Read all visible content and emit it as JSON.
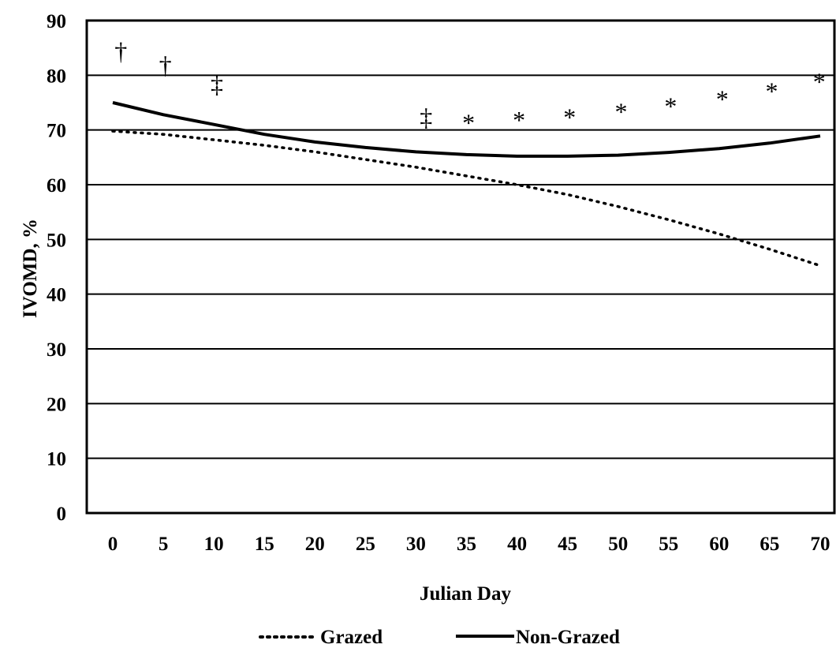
{
  "chart_data": {
    "type": "line",
    "title": "",
    "xlabel": "Julian Day",
    "ylabel": "IVOMD, %",
    "xlim": [
      0,
      70
    ],
    "ylim": [
      0,
      90
    ],
    "x_ticks": [
      "0",
      "5",
      "10",
      "15",
      "20",
      "25",
      "30",
      "35",
      "40",
      "45",
      "50",
      "55",
      "60",
      "65",
      "70"
    ],
    "y_ticks": [
      "0",
      "10",
      "20",
      "30",
      "40",
      "50",
      "60",
      "70",
      "80",
      "90"
    ],
    "grid": "horizontal",
    "legend_position": "bottom",
    "series": [
      {
        "name": "Grazed",
        "style": "dotted",
        "color": "#000000",
        "x": [
          0,
          5,
          10,
          15,
          20,
          25,
          30,
          35,
          40,
          45,
          50,
          55,
          60,
          65,
          70
        ],
        "values": [
          69.8,
          69.2,
          68.2,
          67.2,
          66.0,
          64.6,
          63.2,
          61.6,
          60.0,
          58.2,
          56.0,
          53.6,
          51.0,
          48.2,
          45.2
        ]
      },
      {
        "name": "Non-Grazed",
        "style": "solid",
        "color": "#000000",
        "x": [
          0,
          5,
          10,
          15,
          20,
          25,
          30,
          35,
          40,
          45,
          50,
          55,
          60,
          65,
          70
        ],
        "values": [
          75.0,
          72.8,
          71.0,
          69.2,
          67.8,
          66.8,
          66.0,
          65.5,
          65.2,
          65.2,
          65.4,
          65.9,
          66.6,
          67.6,
          68.9
        ]
      }
    ],
    "annotations": [
      {
        "symbol": "†",
        "x": 0.8,
        "y": 84.5
      },
      {
        "symbol": "†",
        "x": 5.2,
        "y": 82.0
      },
      {
        "symbol": "‡",
        "x": 10.3,
        "y": 78.5
      },
      {
        "symbol": "‡",
        "x": 31.0,
        "y": 72.5
      },
      {
        "symbol": "*",
        "x": 35.2,
        "y": 71.5
      },
      {
        "symbol": "*",
        "x": 40.2,
        "y": 72.0
      },
      {
        "symbol": "*",
        "x": 45.2,
        "y": 72.5
      },
      {
        "symbol": "*",
        "x": 50.3,
        "y": 73.5
      },
      {
        "symbol": "*",
        "x": 55.2,
        "y": 74.5
      },
      {
        "symbol": "*",
        "x": 60.3,
        "y": 75.8
      },
      {
        "symbol": "*",
        "x": 65.2,
        "y": 77.2
      },
      {
        "symbol": "*",
        "x": 69.9,
        "y": 79.0
      }
    ]
  }
}
